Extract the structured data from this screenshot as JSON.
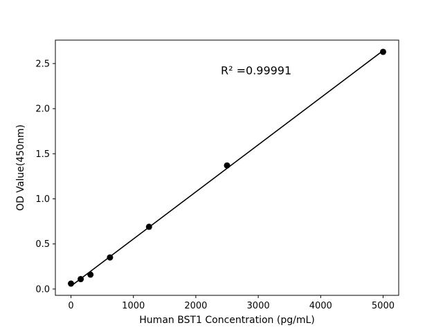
{
  "chart_data": {
    "type": "scatter",
    "title": "",
    "xlabel": "Human BST1 Concentration (pg/mL)",
    "ylabel": "OD Value(450nm)",
    "x": [
      0,
      156,
      312,
      625,
      1250,
      2500,
      5000
    ],
    "y": [
      0.06,
      0.11,
      0.16,
      0.35,
      0.69,
      1.37,
      2.63
    ],
    "fit_line": "linear",
    "annotation": {
      "text": "R² =0.99991",
      "x": 2400,
      "y": 2.38
    },
    "xticks": [
      0,
      1000,
      2000,
      3000,
      4000,
      5000
    ],
    "yticks": [
      0.0,
      0.5,
      1.0,
      1.5,
      2.0,
      2.5
    ],
    "xlim": [
      -250,
      5250
    ],
    "ylim": [
      -0.07,
      2.76
    ],
    "legend": "none",
    "grid": false,
    "marker_color": "#000000",
    "line_color": "#000000",
    "background_color": "#ffffff"
  }
}
